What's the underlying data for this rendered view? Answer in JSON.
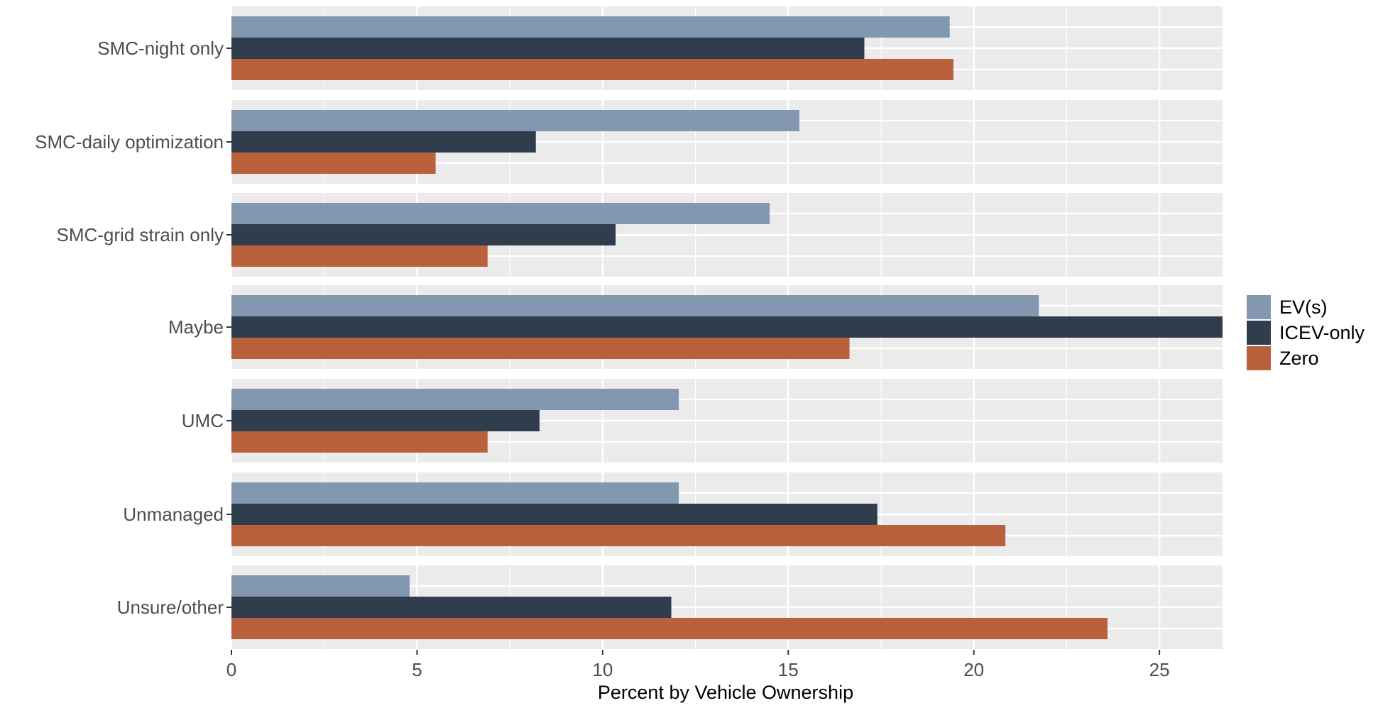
{
  "chart_data": {
    "type": "bar",
    "orientation": "horizontal",
    "categories": [
      "SMC-night only",
      "SMC-daily optimization",
      "SMC-grid strain only",
      "Maybe",
      "UMC",
      "Unmanaged",
      "Unsure/other"
    ],
    "series": [
      {
        "name": "EV(s)",
        "color": "#8497B0",
        "values": [
          19.35,
          15.3,
          14.5,
          21.75,
          12.05,
          12.05,
          4.8
        ]
      },
      {
        "name": "ICEV-only",
        "color": "#2F3D4C",
        "values": [
          17.05,
          8.2,
          10.35,
          27.5,
          8.3,
          17.4,
          11.85
        ]
      },
      {
        "name": "Zero",
        "color": "#B9613C",
        "values": [
          19.45,
          5.5,
          6.9,
          16.65,
          6.9,
          20.85,
          23.6
        ]
      }
    ],
    "xlabel": "Percent by Vehicle Ownership",
    "ylabel": "",
    "title": "",
    "xlim": [
      0,
      26.7
    ],
    "xticks": [
      0,
      5,
      10,
      15,
      20,
      25
    ],
    "xtick_labels": [
      "0",
      "5",
      "10",
      "15",
      "20",
      "25"
    ],
    "facets": true,
    "grid": true,
    "panel_background": "#EBEBEB",
    "grid_color": "#FFFFFF",
    "legend_position": "right"
  }
}
